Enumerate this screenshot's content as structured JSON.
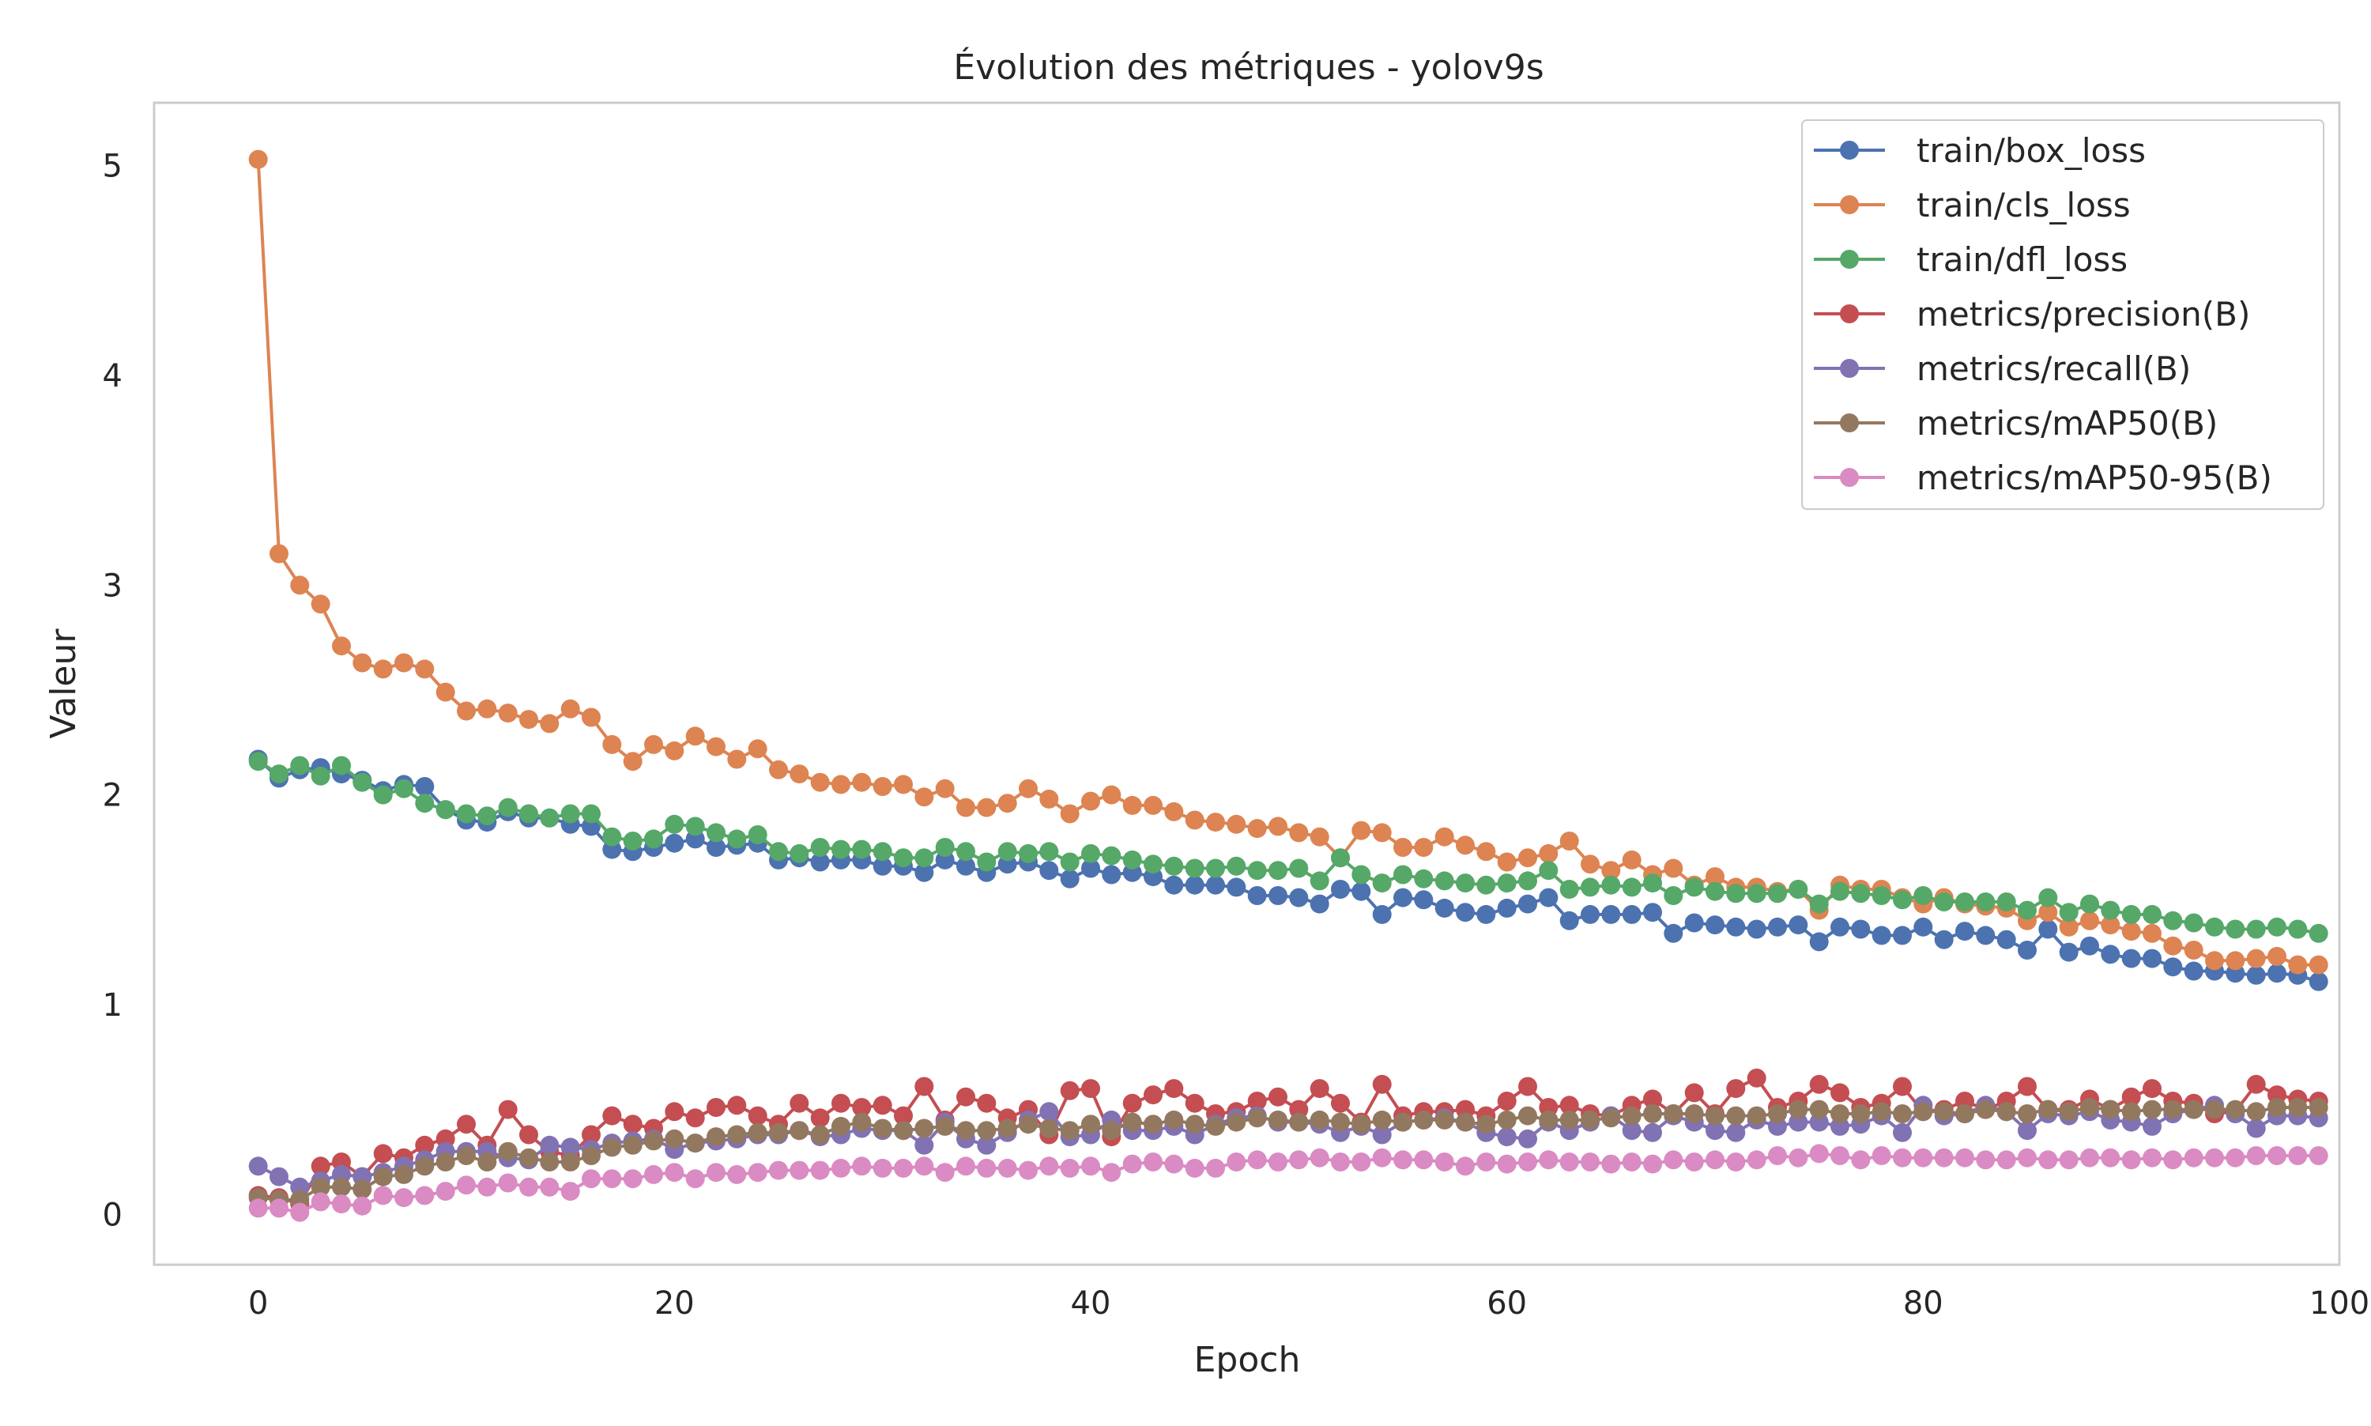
{
  "chart_data": {
    "type": "line",
    "title": "Évolution des métriques - yolov9s",
    "xlabel": "Epoch",
    "ylabel": "Valeur",
    "xlim": [
      -5,
      100
    ],
    "ylim": [
      -0.24,
      5.3
    ],
    "x_ticks": [
      0,
      20,
      40,
      60,
      80,
      100
    ],
    "y_ticks": [
      0,
      1,
      2,
      3,
      4,
      5
    ],
    "grid": false,
    "legend_position": "top-right",
    "x": [
      0,
      1,
      2,
      3,
      4,
      5,
      6,
      7,
      8,
      9,
      10,
      11,
      12,
      13,
      14,
      15,
      16,
      17,
      18,
      19,
      20,
      21,
      22,
      23,
      24,
      25,
      26,
      27,
      28,
      29,
      30,
      31,
      32,
      33,
      34,
      35,
      36,
      37,
      38,
      39,
      40,
      41,
      42,
      43,
      44,
      45,
      46,
      47,
      48,
      49,
      50,
      51,
      52,
      53,
      54,
      55,
      56,
      57,
      58,
      59,
      60,
      61,
      62,
      63,
      64,
      65,
      66,
      67,
      68,
      69,
      70,
      71,
      72,
      73,
      74,
      75,
      76,
      77,
      78,
      79,
      80,
      81,
      82,
      83,
      84,
      85,
      86,
      87,
      88,
      89,
      90,
      91,
      92,
      93,
      94,
      95,
      96,
      97,
      98,
      99
    ],
    "series": [
      {
        "name": "train/box_loss",
        "color": "#4c72b0",
        "values": [
          2.17,
          2.08,
          2.12,
          2.13,
          2.1,
          2.07,
          2.02,
          2.05,
          2.04,
          1.93,
          1.88,
          1.87,
          1.92,
          1.89,
          1.89,
          1.86,
          1.85,
          1.74,
          1.73,
          1.75,
          1.77,
          1.79,
          1.75,
          1.76,
          1.77,
          1.69,
          1.7,
          1.68,
          1.69,
          1.69,
          1.66,
          1.66,
          1.63,
          1.69,
          1.66,
          1.63,
          1.67,
          1.68,
          1.64,
          1.6,
          1.65,
          1.62,
          1.63,
          1.61,
          1.57,
          1.57,
          1.57,
          1.56,
          1.52,
          1.52,
          1.51,
          1.48,
          1.55,
          1.54,
          1.43,
          1.51,
          1.5,
          1.46,
          1.44,
          1.43,
          1.46,
          1.48,
          1.51,
          1.4,
          1.43,
          1.43,
          1.43,
          1.44,
          1.34,
          1.39,
          1.38,
          1.37,
          1.36,
          1.37,
          1.38,
          1.3,
          1.37,
          1.36,
          1.33,
          1.33,
          1.37,
          1.31,
          1.35,
          1.33,
          1.31,
          1.26,
          1.36,
          1.25,
          1.28,
          1.24,
          1.22,
          1.22,
          1.18,
          1.16,
          1.16,
          1.15,
          1.14,
          1.15,
          1.14,
          1.11
        ]
      },
      {
        "name": "train/cls_loss",
        "color": "#dd8452",
        "values": [
          5.03,
          3.15,
          3.0,
          2.91,
          2.71,
          2.63,
          2.6,
          2.63,
          2.6,
          2.49,
          2.4,
          2.41,
          2.39,
          2.36,
          2.34,
          2.41,
          2.37,
          2.24,
          2.16,
          2.24,
          2.21,
          2.28,
          2.23,
          2.17,
          2.22,
          2.12,
          2.1,
          2.06,
          2.05,
          2.06,
          2.04,
          2.05,
          1.99,
          2.03,
          1.94,
          1.94,
          1.96,
          2.03,
          1.98,
          1.91,
          1.97,
          2.0,
          1.95,
          1.95,
          1.92,
          1.88,
          1.87,
          1.86,
          1.84,
          1.85,
          1.82,
          1.8,
          1.7,
          1.83,
          1.82,
          1.75,
          1.75,
          1.8,
          1.76,
          1.73,
          1.68,
          1.7,
          1.72,
          1.78,
          1.67,
          1.64,
          1.69,
          1.62,
          1.65,
          1.57,
          1.61,
          1.56,
          1.56,
          1.54,
          1.55,
          1.45,
          1.57,
          1.55,
          1.55,
          1.51,
          1.48,
          1.51,
          1.48,
          1.47,
          1.46,
          1.4,
          1.44,
          1.37,
          1.4,
          1.38,
          1.35,
          1.34,
          1.28,
          1.26,
          1.21,
          1.21,
          1.22,
          1.23,
          1.19,
          1.19
        ]
      },
      {
        "name": "train/dfl_loss",
        "color": "#55a868",
        "values": [
          2.16,
          2.1,
          2.14,
          2.09,
          2.14,
          2.06,
          2.0,
          2.03,
          1.96,
          1.93,
          1.91,
          1.9,
          1.94,
          1.91,
          1.89,
          1.91,
          1.91,
          1.8,
          1.78,
          1.79,
          1.86,
          1.85,
          1.82,
          1.79,
          1.81,
          1.73,
          1.72,
          1.75,
          1.74,
          1.74,
          1.73,
          1.7,
          1.7,
          1.75,
          1.73,
          1.68,
          1.73,
          1.72,
          1.73,
          1.68,
          1.72,
          1.71,
          1.69,
          1.67,
          1.66,
          1.65,
          1.65,
          1.66,
          1.64,
          1.64,
          1.65,
          1.59,
          1.7,
          1.62,
          1.58,
          1.62,
          1.6,
          1.59,
          1.58,
          1.57,
          1.58,
          1.59,
          1.64,
          1.55,
          1.56,
          1.57,
          1.56,
          1.58,
          1.52,
          1.56,
          1.54,
          1.53,
          1.53,
          1.53,
          1.55,
          1.48,
          1.54,
          1.53,
          1.52,
          1.5,
          1.52,
          1.49,
          1.49,
          1.49,
          1.49,
          1.45,
          1.51,
          1.44,
          1.48,
          1.45,
          1.43,
          1.43,
          1.4,
          1.39,
          1.37,
          1.36,
          1.36,
          1.37,
          1.36,
          1.34
        ]
      },
      {
        "name": "metrics/precision(B)",
        "color": "#c44e52",
        "values": [
          0.09,
          0.08,
          0.05,
          0.23,
          0.25,
          0.18,
          0.29,
          0.27,
          0.33,
          0.36,
          0.43,
          0.33,
          0.5,
          0.38,
          0.3,
          0.28,
          0.38,
          0.47,
          0.43,
          0.41,
          0.49,
          0.46,
          0.51,
          0.52,
          0.47,
          0.43,
          0.53,
          0.46,
          0.53,
          0.51,
          0.52,
          0.47,
          0.61,
          0.45,
          0.56,
          0.53,
          0.46,
          0.5,
          0.38,
          0.59,
          0.6,
          0.37,
          0.53,
          0.57,
          0.6,
          0.53,
          0.48,
          0.49,
          0.54,
          0.56,
          0.5,
          0.6,
          0.53,
          0.44,
          0.62,
          0.47,
          0.49,
          0.49,
          0.5,
          0.47,
          0.54,
          0.61,
          0.51,
          0.52,
          0.48,
          0.47,
          0.52,
          0.55,
          0.48,
          0.58,
          0.48,
          0.6,
          0.65,
          0.51,
          0.54,
          0.62,
          0.58,
          0.51,
          0.53,
          0.61,
          0.49,
          0.5,
          0.54,
          0.5,
          0.54,
          0.61,
          0.5,
          0.5,
          0.55,
          0.5,
          0.56,
          0.6,
          0.54,
          0.53,
          0.48,
          0.49,
          0.62,
          0.57,
          0.55,
          0.54
        ]
      },
      {
        "name": "metrics/recall(B)",
        "color": "#8172b3",
        "values": [
          0.23,
          0.18,
          0.13,
          0.16,
          0.19,
          0.18,
          0.2,
          0.23,
          0.26,
          0.3,
          0.3,
          0.3,
          0.27,
          0.26,
          0.33,
          0.32,
          0.31,
          0.34,
          0.35,
          0.36,
          0.31,
          0.34,
          0.35,
          0.36,
          0.38,
          0.38,
          0.4,
          0.37,
          0.38,
          0.41,
          0.4,
          0.4,
          0.33,
          0.44,
          0.36,
          0.33,
          0.39,
          0.45,
          0.49,
          0.37,
          0.38,
          0.45,
          0.4,
          0.4,
          0.42,
          0.38,
          0.43,
          0.46,
          0.47,
          0.44,
          0.44,
          0.43,
          0.39,
          0.42,
          0.38,
          0.44,
          0.45,
          0.46,
          0.44,
          0.39,
          0.37,
          0.36,
          0.44,
          0.4,
          0.44,
          0.47,
          0.4,
          0.39,
          0.47,
          0.44,
          0.4,
          0.39,
          0.45,
          0.42,
          0.44,
          0.44,
          0.42,
          0.43,
          0.47,
          0.39,
          0.52,
          0.47,
          0.48,
          0.52,
          0.49,
          0.4,
          0.48,
          0.47,
          0.49,
          0.45,
          0.44,
          0.42,
          0.48,
          0.5,
          0.52,
          0.48,
          0.41,
          0.47,
          0.47,
          0.46
        ]
      },
      {
        "name": "metrics/mAP50(B)",
        "color": "#937860",
        "values": [
          0.08,
          0.07,
          0.07,
          0.13,
          0.13,
          0.12,
          0.18,
          0.19,
          0.23,
          0.25,
          0.28,
          0.25,
          0.3,
          0.27,
          0.25,
          0.25,
          0.28,
          0.32,
          0.33,
          0.35,
          0.36,
          0.34,
          0.37,
          0.38,
          0.39,
          0.39,
          0.4,
          0.38,
          0.42,
          0.44,
          0.41,
          0.4,
          0.41,
          0.42,
          0.4,
          0.4,
          0.41,
          0.43,
          0.41,
          0.4,
          0.43,
          0.4,
          0.44,
          0.43,
          0.45,
          0.43,
          0.42,
          0.44,
          0.46,
          0.45,
          0.44,
          0.45,
          0.44,
          0.43,
          0.45,
          0.44,
          0.45,
          0.45,
          0.44,
          0.43,
          0.45,
          0.47,
          0.45,
          0.45,
          0.45,
          0.46,
          0.47,
          0.48,
          0.48,
          0.48,
          0.47,
          0.47,
          0.47,
          0.48,
          0.5,
          0.5,
          0.48,
          0.48,
          0.49,
          0.48,
          0.49,
          0.49,
          0.48,
          0.5,
          0.49,
          0.48,
          0.5,
          0.49,
          0.51,
          0.5,
          0.49,
          0.5,
          0.5,
          0.5,
          0.5,
          0.5,
          0.49,
          0.51,
          0.51,
          0.51
        ]
      },
      {
        "name": "metrics/mAP50-95(B)",
        "color": "#da8bc3",
        "values": [
          0.03,
          0.03,
          0.01,
          0.06,
          0.05,
          0.04,
          0.09,
          0.08,
          0.09,
          0.11,
          0.14,
          0.13,
          0.15,
          0.13,
          0.13,
          0.11,
          0.17,
          0.17,
          0.17,
          0.19,
          0.2,
          0.17,
          0.2,
          0.19,
          0.2,
          0.21,
          0.21,
          0.21,
          0.22,
          0.23,
          0.22,
          0.22,
          0.23,
          0.2,
          0.23,
          0.22,
          0.22,
          0.21,
          0.23,
          0.22,
          0.23,
          0.2,
          0.24,
          0.25,
          0.24,
          0.22,
          0.22,
          0.25,
          0.26,
          0.25,
          0.26,
          0.27,
          0.25,
          0.25,
          0.27,
          0.26,
          0.26,
          0.25,
          0.23,
          0.25,
          0.24,
          0.25,
          0.26,
          0.25,
          0.25,
          0.24,
          0.25,
          0.24,
          0.26,
          0.25,
          0.26,
          0.25,
          0.26,
          0.28,
          0.27,
          0.29,
          0.28,
          0.26,
          0.28,
          0.27,
          0.27,
          0.27,
          0.27,
          0.26,
          0.26,
          0.27,
          0.26,
          0.26,
          0.27,
          0.27,
          0.26,
          0.27,
          0.26,
          0.27,
          0.27,
          0.27,
          0.28,
          0.28,
          0.28,
          0.28
        ]
      }
    ]
  }
}
